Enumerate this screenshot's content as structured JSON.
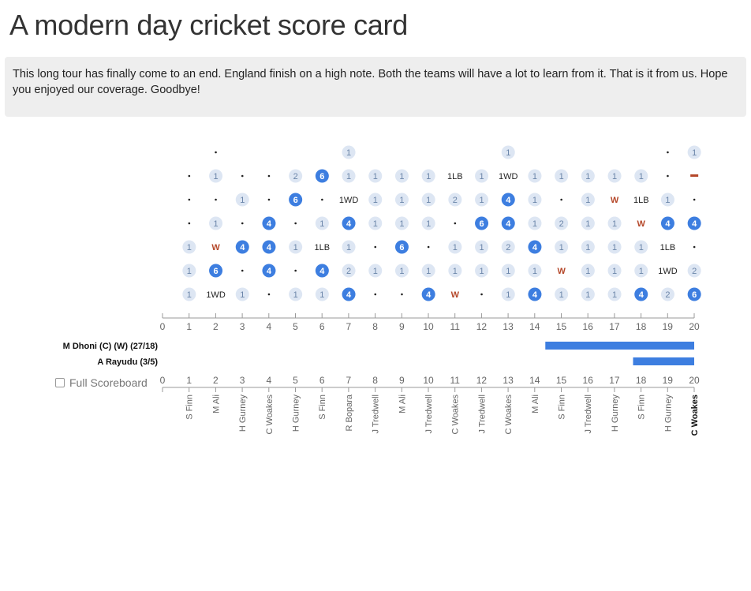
{
  "title": "A modern day cricket score card",
  "commentary": "This long tour has finally come to an end. England finish on a high note. Both the teams will have a lot to learn from it. That is it from us. Hope you enjoyed our coverage. Goodbye!",
  "full_scoreboard_label": "Full Scoreboard",
  "colors": {
    "four_six": "#3d7ee0",
    "run_bubble": "#dde6f3",
    "run_text": "#6a84a8",
    "wicket": "#b5482a",
    "bar": "#3d7ee0",
    "axis": "#999999"
  },
  "chart_data": [
    {
      "type": "table",
      "x_ticks": [
        0,
        1,
        2,
        3,
        4,
        5,
        6,
        7,
        8,
        9,
        10,
        11,
        12,
        13,
        14,
        15,
        16,
        17,
        18,
        19,
        20
      ],
      "overs": [
        {
          "over": 1,
          "bowler": "S Finn",
          "balls": [
            "1",
            "1",
            "1",
            "·",
            "·",
            "·"
          ]
        },
        {
          "over": 2,
          "bowler": "M Ali",
          "balls": [
            "1WD",
            "6",
            "W",
            "1",
            "·",
            "1",
            "·"
          ]
        },
        {
          "over": 3,
          "bowler": "H Gurney",
          "balls": [
            "1",
            "·",
            "4",
            "·",
            "1",
            "·"
          ]
        },
        {
          "over": 4,
          "bowler": "C Woakes",
          "balls": [
            "·",
            "4",
            "4",
            "4",
            "·",
            "·"
          ]
        },
        {
          "over": 5,
          "bowler": "H Gurney",
          "balls": [
            "1",
            "·",
            "1",
            "·",
            "6",
            "2"
          ]
        },
        {
          "over": 6,
          "bowler": "S Finn",
          "balls": [
            "1",
            "4",
            "1LB",
            "1",
            "·",
            "6"
          ]
        },
        {
          "over": 7,
          "bowler": "R Bopara",
          "balls": [
            "4",
            "2",
            "1",
            "4",
            "1WD",
            "1",
            "1"
          ]
        },
        {
          "over": 8,
          "bowler": "J Tredwell",
          "balls": [
            "·",
            "1",
            "·",
            "1",
            "1",
            "1"
          ]
        },
        {
          "over": 9,
          "bowler": "M Ali",
          "balls": [
            "·",
            "1",
            "6",
            "1",
            "1",
            "1"
          ]
        },
        {
          "over": 10,
          "bowler": "J Tredwell",
          "balls": [
            "4",
            "1",
            "·",
            "1",
            "1",
            "1"
          ]
        },
        {
          "over": 11,
          "bowler": "C Woakes",
          "balls": [
            "W",
            "1",
            "1",
            "·",
            "2",
            "1LB"
          ]
        },
        {
          "over": 12,
          "bowler": "J Tredwell",
          "balls": [
            "·",
            "1",
            "1",
            "6",
            "1",
            "1"
          ]
        },
        {
          "over": 13,
          "bowler": "C Woakes",
          "balls": [
            "1",
            "1",
            "2",
            "4",
            "4",
            "1WD",
            "1"
          ]
        },
        {
          "over": 14,
          "bowler": "M Ali",
          "balls": [
            "4",
            "1",
            "4",
            "1",
            "1",
            "1"
          ]
        },
        {
          "over": 15,
          "bowler": "S Finn",
          "balls": [
            "1",
            "W",
            "1",
            "2",
            "·",
            "1"
          ]
        },
        {
          "over": 16,
          "bowler": "J Tredwell",
          "balls": [
            "1",
            "1",
            "1",
            "1",
            "1",
            "1"
          ]
        },
        {
          "over": 17,
          "bowler": "H Gurney",
          "balls": [
            "1",
            "1",
            "1",
            "1",
            "W",
            "1"
          ]
        },
        {
          "over": 18,
          "bowler": "S Finn",
          "balls": [
            "4",
            "1",
            "1",
            "W",
            "1LB",
            "1"
          ]
        },
        {
          "over": 19,
          "bowler": "H Gurney",
          "balls": [
            "2",
            "1WD",
            "1LB",
            "4",
            "1",
            "·",
            "·"
          ]
        },
        {
          "over": 20,
          "bowler": "C Woakes",
          "balls": [
            "6",
            "2",
            "·",
            "4",
            "·",
            "—",
            "1"
          ]
        }
      ],
      "active_bowler": "C Woakes"
    },
    {
      "type": "bar",
      "x_range": [
        0,
        20
      ],
      "series": [
        {
          "label": "M Dhoni (C) (W) (27/18)",
          "start": 14.4,
          "end": 20
        },
        {
          "label": "A Rayudu (3/5)",
          "start": 17.7,
          "end": 20
        }
      ]
    }
  ]
}
